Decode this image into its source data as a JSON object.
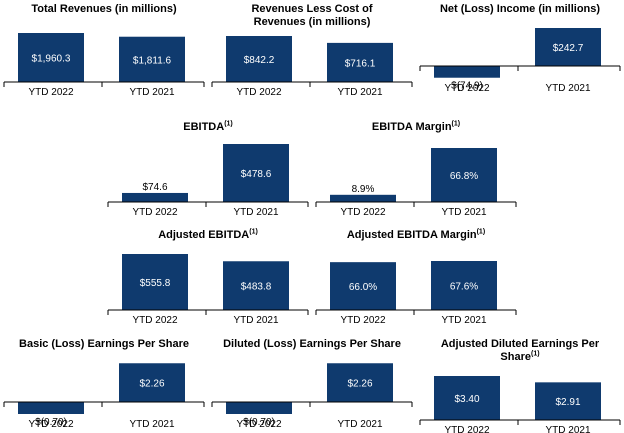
{
  "colors": {
    "bar": "#0f3a6e",
    "axis": "#000000",
    "label_light": "#ffffff",
    "label_dark": "#000000"
  },
  "chart_data": [
    {
      "type": "bar",
      "title": "Total Revenues (in millions)",
      "footnote": "",
      "categories": [
        "YTD 2022",
        "YTD 2021"
      ],
      "values": [
        1960.3,
        1811.6
      ],
      "labels": [
        "$1,960.3",
        "$1,811.6"
      ]
    },
    {
      "type": "bar",
      "title": "Revenues Less Cost of Revenues (in millions)",
      "footnote": "",
      "categories": [
        "YTD 2022",
        "YTD 2021"
      ],
      "values": [
        842.2,
        716.1
      ],
      "labels": [
        "$842.2",
        "$716.1"
      ]
    },
    {
      "type": "bar",
      "title": "Net (Loss) Income (in millions)",
      "footnote": "",
      "categories": [
        "YTD 2022",
        "YTD 2021"
      ],
      "values": [
        -74.9,
        242.7
      ],
      "labels": [
        "$(74.9)",
        "$242.7"
      ]
    },
    {
      "type": "bar",
      "title": "EBITDA",
      "footnote": "(1)",
      "categories": [
        "YTD 2022",
        "YTD 2021"
      ],
      "values": [
        74.6,
        478.6
      ],
      "labels": [
        "$74.6",
        "$478.6"
      ]
    },
    {
      "type": "bar",
      "title": "EBITDA Margin",
      "footnote": "(1)",
      "categories": [
        "YTD 2022",
        "YTD 2021"
      ],
      "values": [
        8.9,
        66.8
      ],
      "labels": [
        "8.9%",
        "66.8%"
      ]
    },
    {
      "type": "bar",
      "title": "Adjusted EBITDA",
      "footnote": "(1)",
      "categories": [
        "YTD 2022",
        "YTD 2021"
      ],
      "values": [
        555.8,
        483.8
      ],
      "labels": [
        "$555.8",
        "$483.8"
      ]
    },
    {
      "type": "bar",
      "title": "Adjusted EBITDA Margin",
      "footnote": "(1)",
      "categories": [
        "YTD 2022",
        "YTD 2021"
      ],
      "values": [
        66.0,
        67.6
      ],
      "labels": [
        "66.0%",
        "67.6%"
      ]
    },
    {
      "type": "bar",
      "title": "Basic (Loss) Earnings Per Share",
      "footnote": "",
      "categories": [
        "YTD 2022",
        "YTD 2021"
      ],
      "values": [
        -0.7,
        2.26
      ],
      "labels": [
        "$(0.70)",
        "$2.26"
      ]
    },
    {
      "type": "bar",
      "title": "Diluted (Loss) Earnings Per Share",
      "footnote": "",
      "categories": [
        "YTD 2022",
        "YTD 2021"
      ],
      "values": [
        -0.7,
        2.26
      ],
      "labels": [
        "$(0.70)",
        "$2.26"
      ]
    },
    {
      "type": "bar",
      "title": "Adjusted Diluted Earnings Per Share",
      "footnote": "(1)",
      "categories": [
        "YTD 2022",
        "YTD 2021"
      ],
      "values": [
        3.4,
        2.91
      ],
      "labels": [
        "$3.40",
        "$2.91"
      ]
    }
  ]
}
